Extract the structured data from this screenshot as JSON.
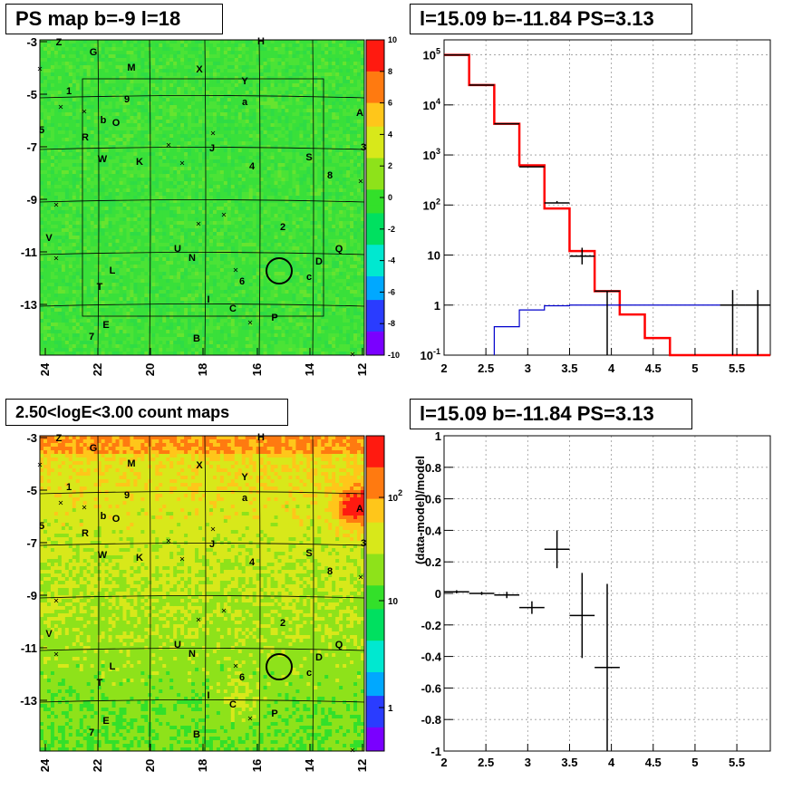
{
  "titles": {
    "top_left": "PS map b=-9 l=18",
    "top_right": "l=15.09 b=-11.84 PS=3.13",
    "bottom_left": "2.50<logE<3.00 count maps",
    "bottom_right": "l=15.09 b=-11.84 PS=3.13"
  },
  "chart_data": [
    {
      "type": "heatmap",
      "title": "PS map b=-9 l=18",
      "x_ticks": [
        "24",
        "22",
        "20",
        "18",
        "16",
        "14",
        "12"
      ],
      "y_ticks": [
        "-3",
        "-5",
        "-7",
        "-9",
        "-11",
        "-13"
      ],
      "colorbar_ticks": [
        "10",
        "8",
        "6",
        "4",
        "2",
        "0",
        "-2",
        "-4",
        "-6",
        "-8",
        "-10"
      ],
      "colorscale": [
        "#7a00ff",
        "#2a3cff",
        "#00a8ff",
        "#00e8d0",
        "#00e060",
        "#33e02a",
        "#8ee21a",
        "#d8e81a",
        "#ffc61a",
        "#ff7a10",
        "#ff1a10"
      ],
      "background_color": "#39e03a",
      "source_labels": [
        "Z",
        "G",
        "M",
        "X",
        "H",
        "1",
        "9",
        "Y",
        "a",
        "b",
        "O",
        "A",
        "5",
        "R",
        "J",
        "W",
        "K",
        "3",
        "S",
        "4",
        "8",
        "2",
        "V",
        "U",
        "N",
        "Q",
        "D",
        "L",
        "c",
        "6",
        "T",
        "I",
        "C",
        "E",
        "P",
        "7",
        "B"
      ],
      "marked_source": {
        "l": 15.09,
        "b": -11.84
      }
    },
    {
      "type": "line",
      "title": "l=15.09 b=-11.84 PS=3.13",
      "x_ticks": [
        "2",
        "2.5",
        "3",
        "3.5",
        "4",
        "4.5",
        "5",
        "5.5"
      ],
      "y_ticks": [
        "10^-1",
        "1",
        "10",
        "10^2",
        "10^3",
        "10^4",
        "10^5"
      ],
      "xlim": [
        2,
        5.9
      ],
      "ylim_log10": [
        -1,
        5.3
      ],
      "grid": true,
      "series": [
        {
          "color": "#ff0000",
          "bin_edges": [
            2,
            2.3,
            2.6,
            2.9,
            3.2,
            3.5,
            3.8,
            4.1,
            4.4,
            4.7,
            5.9
          ],
          "values": [
            100000,
            25000,
            4200,
            620,
            85,
            12,
            1.9,
            0.65,
            0.22,
            0.1
          ]
        },
        {
          "color": "#0000cc",
          "bin_edges": [
            2.6,
            2.9,
            3.2,
            3.5,
            5.9
          ],
          "values": [
            0.37,
            0.8,
            0.97,
            1.0
          ]
        },
        {
          "color": "#000000",
          "x": [
            2.15,
            2.45,
            2.75,
            3.05,
            3.35,
            3.65,
            3.95,
            5.45,
            5.75
          ],
          "values": [
            100000,
            25000,
            4200,
            580,
            110,
            9.5,
            1.9,
            1,
            1
          ],
          "lower": [
            100000,
            25000,
            4200,
            580,
            110,
            6.5,
            0.1,
            0.1,
            0.1
          ],
          "upper": [
            100000,
            25000,
            4200,
            580,
            120,
            14,
            1.9,
            2,
            2
          ]
        }
      ]
    },
    {
      "type": "heatmap",
      "title": "2.50<logE<3.00 count maps",
      "x_ticks": [
        "24",
        "22",
        "20",
        "18",
        "16",
        "14",
        "12"
      ],
      "y_ticks": [
        "-3",
        "-5",
        "-7",
        "-9",
        "-11",
        "-13"
      ],
      "colorbar_ticks": [
        "10^2",
        "10",
        "1"
      ],
      "colorscale": [
        "#7a00ff",
        "#2a3cff",
        "#00a8ff",
        "#00e8d0",
        "#00e060",
        "#33e02a",
        "#8ee21a",
        "#d8e81a",
        "#ffc61a",
        "#ff7a10",
        "#ff1a10"
      ],
      "source_labels": [
        "Z",
        "G",
        "M",
        "X",
        "H",
        "1",
        "9",
        "Y",
        "a",
        "b",
        "O",
        "A",
        "5",
        "R",
        "J",
        "W",
        "K",
        "3",
        "S",
        "4",
        "8",
        "2",
        "V",
        "U",
        "N",
        "Q",
        "D",
        "L",
        "c",
        "6",
        "T",
        "I",
        "C",
        "E",
        "P",
        "7",
        "B"
      ],
      "marked_source": {
        "l": 15.09,
        "b": -11.84
      }
    },
    {
      "type": "scatter",
      "title": "l=15.09 b=-11.84 PS=3.13",
      "ylabel": "(data-model)/model",
      "x_ticks": [
        "2",
        "2.5",
        "3",
        "3.5",
        "4",
        "4.5",
        "5",
        "5.5"
      ],
      "y_ticks": [
        "1",
        "0.8",
        "0.6",
        "0.4",
        "0.2",
        "0",
        "-0.2",
        "-0.4",
        "-0.6",
        "-0.8",
        "-1"
      ],
      "xlim": [
        2,
        5.9
      ],
      "ylim": [
        -1,
        1
      ],
      "grid": true,
      "points": [
        {
          "x": 2.15,
          "y": 0.01,
          "xerr": 0.15,
          "yerr": 0.01
        },
        {
          "x": 2.45,
          "y": 0.0,
          "xerr": 0.15,
          "yerr": 0.01
        },
        {
          "x": 2.75,
          "y": -0.01,
          "xerr": 0.15,
          "yerr": 0.02
        },
        {
          "x": 3.05,
          "y": -0.09,
          "xerr": 0.15,
          "yerr": 0.04
        },
        {
          "x": 3.35,
          "y": 0.28,
          "xerr": 0.15,
          "yerr": 0.12
        },
        {
          "x": 3.65,
          "y": -0.14,
          "xerr": 0.15,
          "yerr": 0.27
        },
        {
          "x": 3.95,
          "y": -0.47,
          "xerr": 0.15,
          "yerr": 0.53
        }
      ]
    }
  ]
}
